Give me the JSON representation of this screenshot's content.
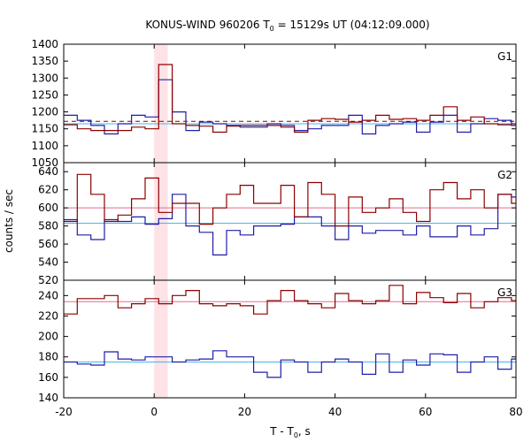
{
  "colors": {
    "series_a": "#8b0000",
    "series_a_mean": "#dd6f8f",
    "series_b": "#1f1fa8",
    "series_b_mean": "#49b6e8",
    "highlight_band": "#fde2e6",
    "background": "#ffffff"
  },
  "chart_data": {
    "type": "line",
    "title": "KONUS-WIND 960206 T",
    "title_sub": "0",
    "title_rest": " = 15129s UT (04:12:09.000)",
    "xlabel": "T - T",
    "xlabel_sub": "0",
    "xlabel_rest": ", s",
    "ylabel": "counts / sec",
    "xlim": [
      -20,
      80
    ],
    "x_ticks": [
      -20,
      0,
      20,
      40,
      60,
      80
    ],
    "highlight_x": [
      0,
      3
    ],
    "panels": [
      {
        "label": "G1",
        "ylim": [
          1050,
          1400
        ],
        "y_ticks": [
          1050,
          1100,
          1150,
          1200,
          1250,
          1300,
          1350,
          1400
        ],
        "x_start": -20,
        "bin_width": 3,
        "series_a": [
          1162,
          1150,
          1145,
          1145,
          1145,
          1155,
          1150,
          1340,
          1165,
          1160,
          1158,
          1140,
          1158,
          1160,
          1160,
          1160,
          1155,
          1140,
          1175,
          1180,
          1178,
          1170,
          1175,
          1190,
          1178,
          1180,
          1175,
          1190,
          1215,
          1175,
          1185,
          1165,
          1162,
          1160
        ],
        "series_b": [
          1190,
          1175,
          1160,
          1135,
          1165,
          1190,
          1185,
          1295,
          1200,
          1145,
          1170,
          1165,
          1160,
          1155,
          1155,
          1165,
          1160,
          1145,
          1150,
          1160,
          1160,
          1190,
          1135,
          1160,
          1165,
          1170,
          1140,
          1170,
          1190,
          1140,
          1165,
          1180,
          1175,
          1165
        ],
        "mean_a": 1172,
        "mean_b": 1165,
        "mean_a_dashed": true
      },
      {
        "label": "G2",
        "ylim": [
          520,
          650
        ],
        "y_ticks": [
          520,
          540,
          560,
          580,
          600,
          620,
          640
        ],
        "x_start": -20,
        "bin_width": 3,
        "series_a": [
          585,
          637,
          615,
          585,
          592,
          610,
          633,
          595,
          605,
          605,
          582,
          600,
          615,
          625,
          605,
          605,
          625,
          590,
          628,
          615,
          580,
          612,
          595,
          600,
          610,
          595,
          585,
          620,
          628,
          610,
          620,
          600,
          615,
          605
        ],
        "series_b": [
          587,
          570,
          565,
          587,
          585,
          590,
          582,
          588,
          615,
          580,
          573,
          548,
          575,
          570,
          580,
          580,
          582,
          590,
          590,
          580,
          565,
          580,
          572,
          575,
          575,
          570,
          580,
          568,
          568,
          580,
          570,
          577,
          615,
          612
        ],
        "mean_a": 600,
        "mean_b": 583,
        "mean_a_dashed": false
      },
      {
        "label": "G3",
        "ylim": [
          140,
          255
        ],
        "y_ticks": [
          140,
          160,
          180,
          200,
          220,
          240
        ],
        "x_start": -20,
        "bin_width": 3,
        "series_a": [
          222,
          237,
          237,
          240,
          228,
          232,
          237,
          232,
          240,
          245,
          232,
          230,
          232,
          230,
          222,
          235,
          245,
          235,
          232,
          228,
          242,
          235,
          232,
          235,
          250,
          232,
          243,
          238,
          233,
          242,
          228,
          234,
          238,
          235
        ],
        "series_b": [
          175,
          173,
          172,
          185,
          178,
          177,
          180,
          180,
          175,
          177,
          178,
          186,
          180,
          180,
          165,
          160,
          177,
          175,
          165,
          175,
          178,
          175,
          163,
          183,
          165,
          177,
          172,
          183,
          182,
          165,
          175,
          180,
          168,
          178
        ],
        "mean_a": 234,
        "mean_b": 175,
        "mean_a_dashed": false
      }
    ]
  }
}
